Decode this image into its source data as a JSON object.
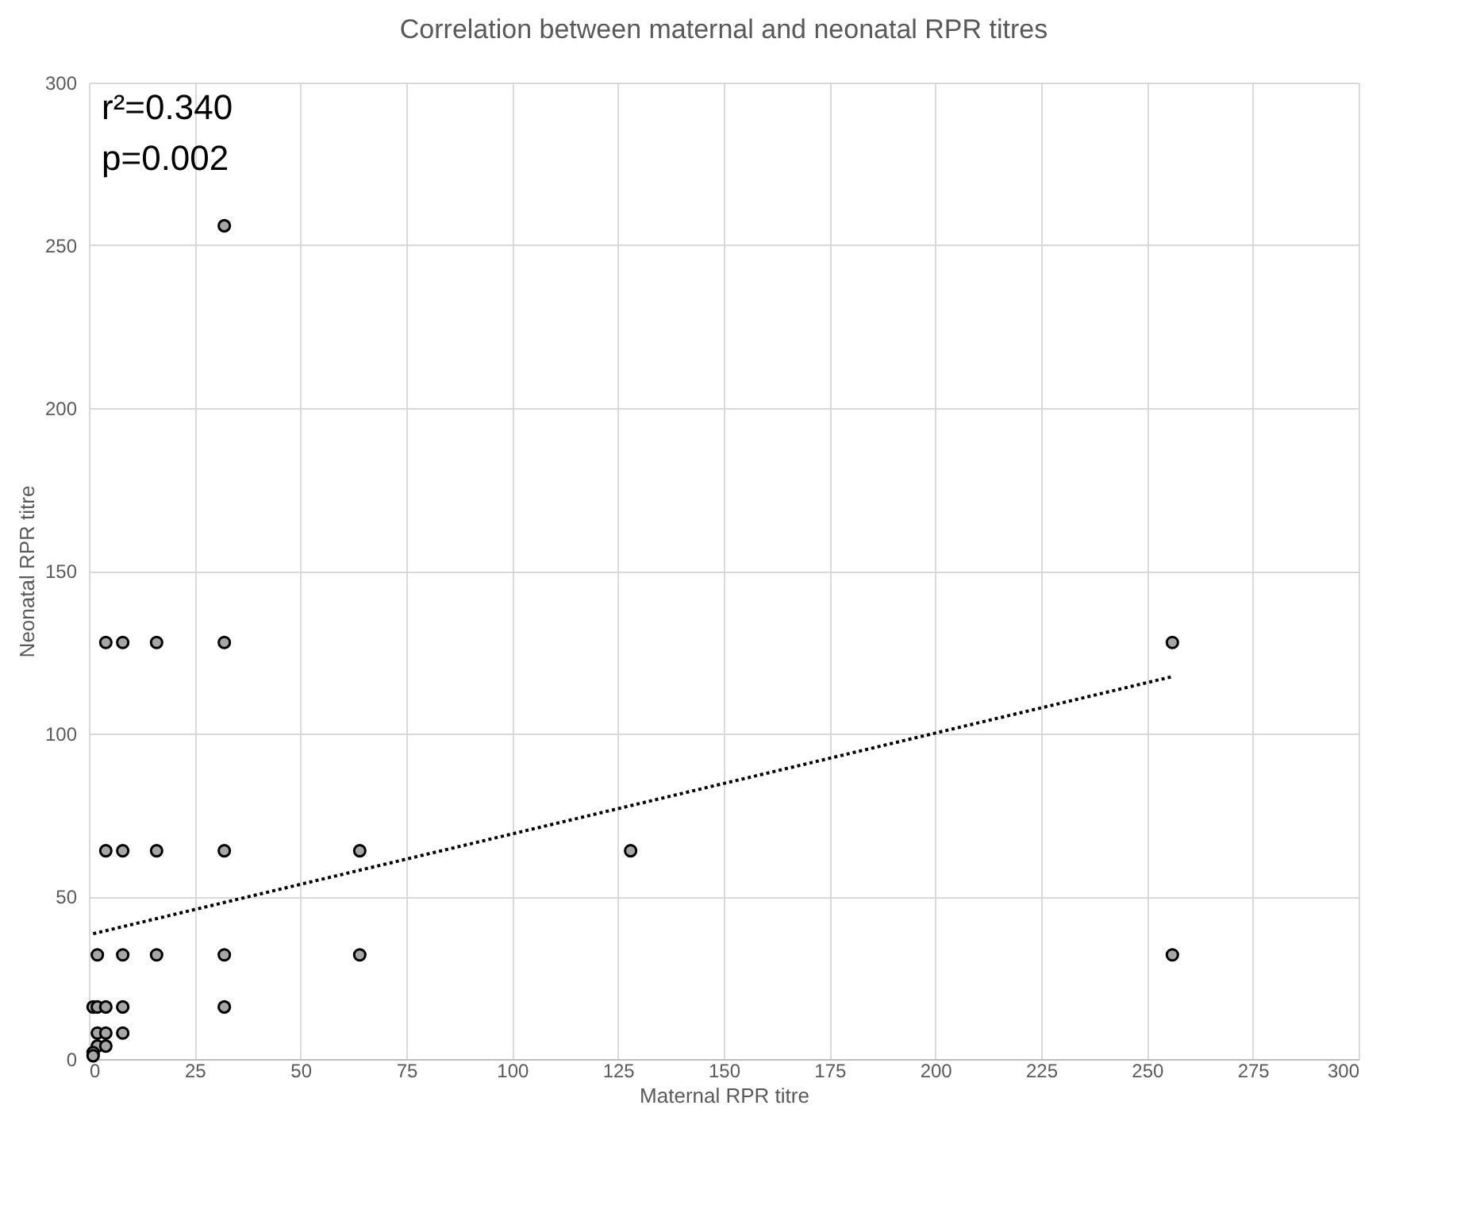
{
  "chart_data": {
    "type": "scatter",
    "title": "Correlation between maternal and neonatal RPR titres",
    "xlabel": "Maternal RPR titre",
    "ylabel": "Neonatal RPR titre",
    "series": [
      {
        "type": "scatter",
        "color": "#a6a6a6",
        "marker": "circle",
        "x": [
          32,
          4,
          8,
          16,
          32,
          256,
          4,
          8,
          16,
          32,
          64,
          128,
          2,
          8,
          16,
          32,
          64,
          256,
          1,
          2,
          4,
          8,
          32,
          2,
          4,
          8,
          2,
          4,
          1,
          1
        ],
        "values": [
          256,
          128,
          128,
          128,
          128,
          128,
          64,
          64,
          64,
          64,
          64,
          64,
          32,
          32,
          32,
          32,
          32,
          32,
          16,
          16,
          16,
          16,
          16,
          8,
          8,
          8,
          4,
          4,
          2,
          1
        ]
      },
      {
        "type": "line",
        "color": "#000000",
        "line_style": "dotted",
        "x": [
          1,
          256
        ],
        "values": [
          38.5,
          117.5
        ]
      }
    ],
    "xlim": [
      0,
      300
    ],
    "ylim": [
      0,
      300
    ],
    "xticks": [
      0,
      25,
      50,
      75,
      100,
      125,
      150,
      175,
      200,
      225,
      250,
      275,
      300
    ],
    "yticks": [
      0,
      50,
      100,
      150,
      200,
      250,
      300
    ],
    "grid": true,
    "annotations": [
      "r²=0.340",
      "p=0.002"
    ]
  }
}
